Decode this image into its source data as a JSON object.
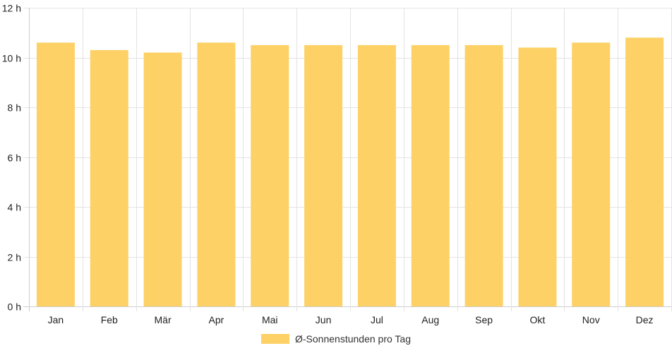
{
  "chart_data": {
    "type": "bar",
    "categories": [
      "Jan",
      "Feb",
      "Mär",
      "Apr",
      "Mai",
      "Jun",
      "Jul",
      "Aug",
      "Sep",
      "Okt",
      "Nov",
      "Dez"
    ],
    "series": [
      {
        "name": "Ø-Sonnenstunden pro Tag",
        "values": [
          10.6,
          10.3,
          10.2,
          10.6,
          10.5,
          10.5,
          10.5,
          10.5,
          10.5,
          10.4,
          10.6,
          10.8
        ],
        "color": "#fdd166"
      }
    ],
    "yticks": [
      "0 h",
      "2 h",
      "4 h",
      "6 h",
      "8 h",
      "10 h",
      "12 h"
    ],
    "ylim": [
      0,
      12
    ],
    "grid": true,
    "legend_position": "bottom-center"
  }
}
